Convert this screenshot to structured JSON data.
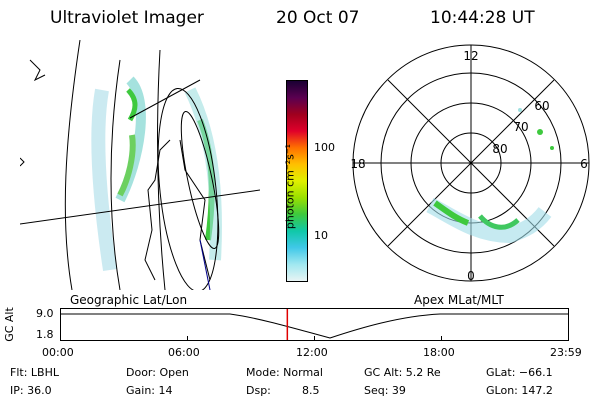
{
  "header": {
    "instrument": "Ultraviolet Imager",
    "date": "20 Oct 07",
    "time": "10:44:28 UT"
  },
  "left_panel": {
    "caption": "Geographic Lat/Lon"
  },
  "right_panel": {
    "caption": "Apex MLat/MLT",
    "mlt_labels": [
      "12",
      "18",
      "6",
      "0"
    ],
    "lat_labels": [
      "60",
      "70",
      "80"
    ]
  },
  "colorbar": {
    "unit_label": "photon cm⁻²s⁻¹",
    "ticks": [
      "100",
      "10"
    ],
    "colors": [
      "#1a0033",
      "#5a0050",
      "#a0001e",
      "#e0002a",
      "#ff7000",
      "#ffc000",
      "#e0f000",
      "#9ae000",
      "#3ec93e",
      "#10c8a8",
      "#40c8e8",
      "#a0e8f0",
      "#e8f4f4"
    ]
  },
  "altitude_plot": {
    "ylabel": "GC Alt",
    "yticks": [
      "9.0",
      "1.8"
    ],
    "xticks": [
      "00:00",
      "06:00",
      "12:00",
      "18:00",
      "23:59"
    ],
    "current_time_hours": 10.74
  },
  "info": {
    "flt": "Flt: LBHL",
    "door": "Door: Open",
    "mode": "Mode: Normal",
    "gcalt": "GC Alt: 5.2 Re",
    "glat": "GLat: −66.1",
    "ip": "IP: 36.0",
    "gain": "Gain: 14",
    "dsp_label": "Dsp:",
    "dsp_value": "8.5",
    "seq": "Seq: 39",
    "glon": "GLon: 147.2"
  }
}
